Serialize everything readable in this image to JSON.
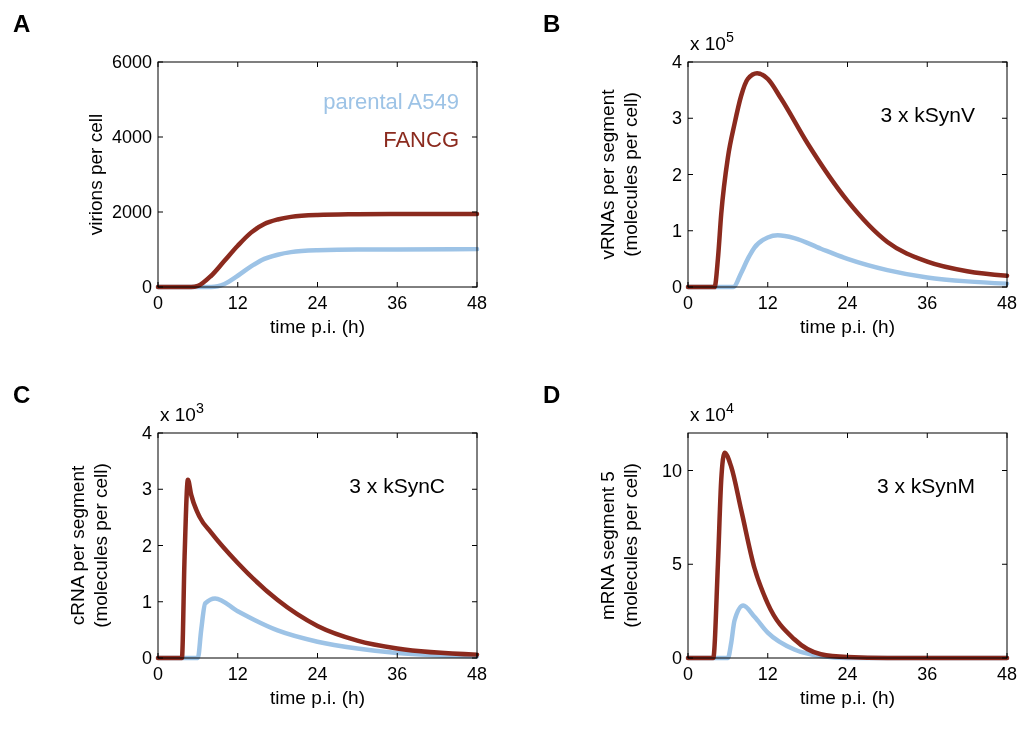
{
  "chart_data": [
    {
      "type": "line",
      "title": "A",
      "xlabel": "time p.i. (h)",
      "ylabel": "virions per cell",
      "xlim": [
        0,
        48
      ],
      "xticks": [
        0,
        12,
        24,
        36,
        48
      ],
      "ylim": [
        0,
        6000
      ],
      "yticks": [
        0,
        2000,
        4000,
        6000
      ],
      "legend": "top right",
      "series": [
        {
          "name": "parental A549",
          "color": "#9dc3e6",
          "x": [
            0,
            8,
            9,
            10,
            12,
            14,
            16,
            18,
            20,
            24,
            30,
            36,
            48
          ],
          "values": [
            0,
            0,
            20,
            80,
            300,
            550,
            750,
            860,
            930,
            980,
            1000,
            1000,
            1010
          ]
        },
        {
          "name": "FANCG",
          "color": "#8b2a1e",
          "x": [
            0,
            5,
            6,
            8,
            10,
            12,
            14,
            16,
            18,
            20,
            24,
            30,
            36,
            48
          ],
          "values": [
            0,
            0,
            30,
            300,
            700,
            1100,
            1450,
            1680,
            1800,
            1870,
            1920,
            1940,
            1950,
            1950
          ]
        }
      ]
    },
    {
      "type": "line",
      "title": "B",
      "xlabel": "time p.i. (h)",
      "ylabel": "vRNAs per segment\n(molecules per cell)",
      "xlim": [
        0,
        48
      ],
      "xticks": [
        0,
        12,
        24,
        36,
        48
      ],
      "ylim": [
        0,
        4
      ],
      "yticks": [
        0,
        1,
        2,
        3,
        4
      ],
      "annotations": [
        "x 10$^{5}$",
        "3 x kSynV"
      ],
      "series": [
        {
          "color": "#9dc3e6",
          "x": [
            0,
            6.8,
            8,
            9,
            10,
            12,
            13.5,
            16,
            20,
            24,
            30,
            36,
            42,
            48
          ],
          "values": [
            0,
            0,
            0.25,
            0.5,
            0.7,
            0.88,
            0.92,
            0.87,
            0.68,
            0.5,
            0.3,
            0.17,
            0.1,
            0.06
          ]
        },
        {
          "color": "#8b2a1e",
          "x": [
            0,
            4,
            4.5,
            5,
            6,
            7,
            8,
            9,
            10.4,
            12,
            14,
            18,
            24,
            30,
            36,
            42,
            48
          ],
          "values": [
            0,
            0,
            0.5,
            1.3,
            2.3,
            2.9,
            3.4,
            3.7,
            3.8,
            3.7,
            3.35,
            2.55,
            1.53,
            0.8,
            0.45,
            0.28,
            0.2
          ]
        }
      ]
    },
    {
      "type": "line",
      "title": "C",
      "xlabel": "time p.i. (h)",
      "ylabel": "cRNA per segment\n(molecules per cell)",
      "xlim": [
        0,
        48
      ],
      "xticks": [
        0,
        12,
        24,
        36,
        48
      ],
      "ylim": [
        0,
        4
      ],
      "yticks": [
        0,
        1,
        2,
        3,
        4
      ],
      "annotations": [
        "x 10$^{3}$",
        "3 x kSynC"
      ],
      "series": [
        {
          "color": "#9dc3e6",
          "x": [
            0,
            6,
            6.5,
            7.1,
            8.6,
            12,
            18,
            24,
            30,
            36,
            48
          ],
          "values": [
            0,
            0,
            0.5,
            0.97,
            1.06,
            0.83,
            0.49,
            0.29,
            0.17,
            0.09,
            0.03
          ]
        },
        {
          "color": "#8b2a1e",
          "x": [
            0,
            3.6,
            4,
            4.5,
            5,
            6.3,
            8,
            12,
            18,
            24,
            30,
            36,
            48
          ],
          "values": [
            0,
            0,
            1.8,
            3.17,
            2.9,
            2.5,
            2.23,
            1.69,
            1.03,
            0.57,
            0.31,
            0.17,
            0.06
          ]
        }
      ]
    },
    {
      "type": "line",
      "title": "D",
      "xlabel": "time p.i. (h)",
      "ylabel": "mRNA segment 5\n(molecules per cell)",
      "xlim": [
        0,
        48
      ],
      "xticks": [
        0,
        12,
        24,
        36,
        48
      ],
      "ylim": [
        0,
        12
      ],
      "yticks": [
        0,
        5,
        10
      ],
      "annotations": [
        "x 10$^{4}$",
        "3 x kSynM"
      ],
      "series": [
        {
          "color": "#9dc3e6",
          "x": [
            0,
            6,
            6.5,
            7,
            8.3,
            10,
            12,
            16,
            20,
            24,
            48
          ],
          "values": [
            0,
            0,
            0.8,
            2,
            2.8,
            2.2,
            1.35,
            0.45,
            0.1,
            0,
            0
          ]
        },
        {
          "color": "#8b2a1e",
          "x": [
            0,
            3.8,
            4.5,
            5,
            5.5,
            6.5,
            8,
            10,
            12,
            16,
            20,
            24,
            30,
            48
          ],
          "values": [
            0,
            0,
            5,
            9.5,
            10.95,
            10.2,
            7.9,
            4.8,
            2.9,
            1.0,
            0.2,
            0.05,
            0,
            0
          ]
        }
      ]
    }
  ]
}
